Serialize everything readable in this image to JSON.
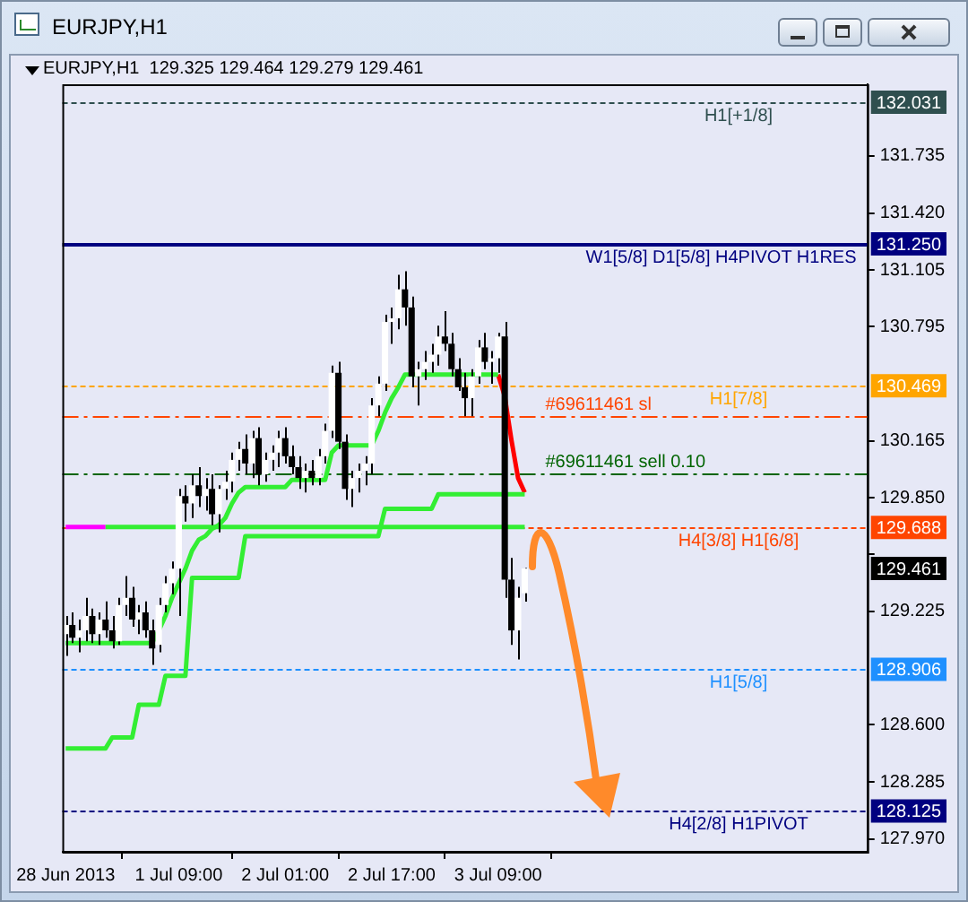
{
  "chart_data": {
    "type": "candlestick",
    "title": "EURJPY,H1",
    "subtitle": "129.325 129.464 129.279 129.461",
    "categories": [
      "28 Jun 2013",
      null,
      null,
      null,
      null,
      null,
      null,
      null,
      null,
      null,
      null,
      null,
      null,
      null,
      null,
      null,
      null,
      "1 Jul 09:00",
      null,
      null,
      null,
      null,
      null,
      null,
      null,
      null,
      null,
      null,
      null,
      null,
      null,
      null,
      null,
      "2 Jul 01:00",
      null,
      null,
      null,
      null,
      null,
      null,
      null,
      null,
      null,
      null,
      null,
      null,
      null,
      null,
      null,
      "2 Jul 17:00",
      null,
      null,
      null,
      null,
      null,
      null,
      null,
      null,
      null,
      null,
      null,
      null,
      null,
      null,
      null,
      "3 Jul 09:00",
      null,
      null,
      null,
      null,
      null,
      null,
      null,
      null,
      null,
      null,
      null,
      null,
      null,
      null,
      null,
      null,
      null,
      null,
      null,
      null,
      null,
      null,
      null,
      null,
      null,
      null,
      null,
      null,
      null,
      null,
      null,
      null,
      null,
      null,
      null,
      null,
      null,
      null,
      null,
      null,
      null,
      null,
      null,
      null,
      null,
      null,
      null,
      null,
      null,
      null,
      null,
      null,
      null,
      null,
      null
    ],
    "ohlc": [
      [
        129.1,
        129.2,
        128.98,
        129.15
      ],
      [
        129.15,
        129.22,
        129.05,
        129.08
      ],
      [
        129.08,
        129.18,
        129.0,
        129.12
      ],
      [
        129.12,
        129.3,
        129.06,
        129.2
      ],
      [
        129.2,
        129.24,
        129.05,
        129.1
      ],
      [
        129.1,
        129.22,
        129.04,
        129.18
      ],
      [
        129.18,
        129.28,
        129.08,
        129.12
      ],
      [
        129.12,
        129.2,
        129.02,
        129.06
      ],
      [
        129.06,
        129.3,
        129.04,
        129.26
      ],
      [
        129.26,
        129.42,
        129.2,
        129.3
      ],
      [
        129.3,
        129.36,
        129.14,
        129.18
      ],
      [
        129.18,
        129.26,
        129.1,
        129.22
      ],
      [
        129.22,
        129.28,
        129.08,
        129.12
      ],
      [
        129.12,
        129.18,
        128.93,
        129.02
      ],
      [
        129.04,
        129.3,
        129.0,
        129.26
      ],
      [
        129.26,
        129.42,
        129.22,
        129.38
      ],
      [
        129.38,
        129.5,
        129.32,
        129.46
      ],
      [
        129.46,
        129.9,
        129.2,
        129.86
      ],
      [
        129.86,
        129.92,
        129.72,
        129.82
      ],
      [
        129.82,
        129.98,
        129.74,
        129.92
      ],
      [
        129.92,
        130.02,
        129.8,
        129.86
      ],
      [
        129.86,
        129.96,
        129.78,
        129.9
      ],
      [
        129.9,
        129.98,
        129.7,
        129.76
      ],
      [
        129.76,
        129.92,
        129.66,
        129.9
      ],
      [
        129.9,
        130.0,
        129.84,
        129.94
      ],
      [
        129.94,
        130.1,
        129.88,
        130.06
      ],
      [
        130.06,
        130.16,
        130.0,
        130.12
      ],
      [
        130.12,
        130.2,
        129.98,
        130.04
      ],
      [
        130.04,
        130.22,
        129.96,
        130.18
      ],
      [
        130.18,
        130.24,
        129.92,
        129.98
      ],
      [
        129.98,
        130.1,
        129.94,
        130.06
      ],
      [
        130.06,
        130.14,
        130.0,
        130.1
      ],
      [
        130.1,
        130.22,
        130.02,
        130.18
      ],
      [
        130.18,
        130.24,
        130.04,
        130.08
      ],
      [
        130.08,
        130.14,
        129.98,
        130.02
      ],
      [
        130.02,
        130.08,
        129.9,
        129.96
      ],
      [
        129.96,
        130.04,
        129.88,
        130.0
      ],
      [
        130.0,
        130.06,
        129.92,
        129.96
      ],
      [
        129.96,
        130.12,
        129.92,
        130.08
      ],
      [
        130.08,
        130.26,
        130.04,
        130.22
      ],
      [
        130.22,
        130.58,
        130.18,
        130.54
      ],
      [
        130.54,
        130.6,
        130.12,
        130.16
      ],
      [
        130.16,
        130.2,
        129.84,
        129.9
      ],
      [
        129.9,
        130.0,
        129.8,
        129.96
      ],
      [
        129.96,
        130.04,
        129.88,
        130.0
      ],
      [
        130.0,
        130.08,
        129.92,
        130.04
      ],
      [
        130.04,
        130.4,
        129.98,
        130.36
      ],
      [
        130.36,
        130.52,
        130.3,
        130.48
      ],
      [
        130.48,
        130.86,
        130.44,
        130.82
      ],
      [
        130.82,
        130.9,
        130.7,
        130.84
      ],
      [
        130.84,
        131.08,
        130.78,
        131.0
      ],
      [
        131.0,
        131.1,
        130.8,
        130.9
      ],
      [
        130.9,
        130.96,
        130.46,
        130.52
      ],
      [
        130.52,
        130.6,
        130.36,
        130.56
      ],
      [
        130.56,
        130.66,
        130.5,
        130.6
      ],
      [
        130.6,
        130.7,
        130.54,
        130.64
      ],
      [
        130.64,
        130.8,
        130.58,
        130.74
      ],
      [
        130.74,
        130.88,
        130.66,
        130.7
      ],
      [
        130.7,
        130.76,
        130.52,
        130.56
      ],
      [
        130.56,
        130.62,
        130.44,
        130.46
      ],
      [
        130.46,
        130.54,
        130.3,
        130.4
      ],
      [
        130.4,
        130.56,
        130.3,
        130.52
      ],
      [
        130.52,
        130.72,
        130.48,
        130.68
      ],
      [
        130.68,
        130.76,
        130.56,
        130.6
      ],
      [
        130.6,
        130.66,
        130.48,
        130.62
      ],
      [
        130.62,
        130.76,
        130.54,
        130.74
      ],
      [
        130.74,
        130.82,
        129.3,
        129.4
      ],
      [
        129.4,
        129.52,
        129.04,
        129.12
      ],
      [
        129.12,
        129.36,
        128.96,
        129.3
      ],
      [
        129.325,
        129.464,
        129.279,
        129.461
      ],
      null,
      null,
      null,
      null,
      null,
      null,
      null,
      null,
      null,
      null,
      null,
      null,
      null,
      null,
      null,
      null,
      null,
      null,
      null,
      null,
      null,
      null,
      null,
      null,
      null,
      null,
      null,
      null,
      null,
      null,
      null,
      null,
      null,
      null,
      null,
      null,
      null,
      null,
      null,
      null,
      null,
      null,
      null,
      null,
      null,
      null,
      null,
      null,
      null,
      null,
      null
    ],
    "series": [
      {
        "type": "line",
        "color": "#33ee33",
        "values": [
          128.47,
          128.47,
          128.47,
          128.47,
          128.47,
          128.47,
          128.47,
          128.53,
          128.53,
          128.53,
          128.53,
          128.71,
          128.71,
          128.71,
          128.71,
          128.87,
          128.87,
          128.87,
          128.87,
          129.41,
          129.41,
          129.41,
          129.41,
          129.41,
          129.41,
          129.41,
          129.41,
          129.64,
          129.64,
          129.64,
          129.64,
          129.64,
          129.64,
          129.64,
          129.64,
          129.64,
          129.64,
          129.64,
          129.64,
          129.64,
          129.64,
          129.64,
          129.64,
          129.64,
          129.64,
          129.64,
          129.64,
          129.64,
          129.79,
          129.79,
          129.79,
          129.79,
          129.79,
          129.79,
          129.79,
          129.79,
          129.87,
          129.87,
          129.87,
          129.87,
          129.87,
          129.87,
          129.87,
          129.87,
          129.87,
          129.87,
          129.87,
          129.87,
          129.87,
          129.87,
          null,
          null,
          null,
          null,
          null,
          null,
          null,
          null,
          null,
          null,
          null,
          null,
          null,
          null,
          null,
          null,
          null,
          null,
          null,
          null,
          null,
          null,
          null,
          null,
          null,
          null,
          null,
          null,
          null,
          null,
          null,
          null,
          null,
          null,
          null,
          null,
          null,
          null,
          null,
          null,
          null,
          null,
          null,
          null,
          null,
          null,
          null,
          null,
          null,
          null,
          null
        ]
      },
      {
        "type": "line",
        "color": "#33ee33",
        "values": [
          129.05,
          129.05,
          129.05,
          129.05,
          129.05,
          129.05,
          129.05,
          129.05,
          129.05,
          129.05,
          129.05,
          129.05,
          129.05,
          129.05,
          129.12,
          129.2,
          129.3,
          129.38,
          129.46,
          129.56,
          129.62,
          129.64,
          129.68,
          129.7,
          129.74,
          129.82,
          129.88,
          129.91,
          129.91,
          129.91,
          129.91,
          129.91,
          129.91,
          129.91,
          129.95,
          129.95,
          129.95,
          129.95,
          129.95,
          129.95,
          130.1,
          130.14,
          130.14,
          130.14,
          130.14,
          130.14,
          130.14,
          130.22,
          130.32,
          130.4,
          130.46,
          130.53,
          130.53,
          130.53,
          130.53,
          130.53,
          130.53,
          130.53,
          130.53,
          130.53,
          130.53,
          130.53,
          130.53,
          130.53,
          130.53,
          130.53,
          null,
          null,
          null,
          null,
          null,
          null,
          null,
          null,
          null,
          null,
          null,
          null,
          null,
          null,
          null,
          null,
          null,
          null,
          null,
          null,
          null,
          null,
          null,
          null,
          null,
          null,
          null,
          null,
          null,
          null,
          null,
          null,
          null,
          null,
          null,
          null,
          null,
          null,
          null,
          null,
          null,
          null,
          null,
          null,
          null,
          null,
          null,
          null,
          null,
          null,
          null,
          null,
          null,
          null,
          null
        ]
      },
      {
        "type": "line",
        "color": "#33ee33",
        "values": [
          null,
          null,
          null,
          null,
          null,
          null,
          129.69,
          129.69,
          129.69,
          129.69,
          129.69,
          129.69,
          129.69,
          129.69,
          129.69,
          129.69,
          129.69,
          129.69,
          129.69,
          129.69,
          129.69,
          129.69,
          129.69,
          129.69,
          129.69,
          129.69,
          129.69,
          129.69,
          129.69,
          129.69,
          129.69,
          129.69,
          129.69,
          129.69,
          129.69,
          129.69,
          129.69,
          129.69,
          129.69,
          129.69,
          129.69,
          129.69,
          129.69,
          129.69,
          129.69,
          129.69,
          129.69,
          129.69,
          129.69,
          129.69,
          129.69,
          129.69,
          129.69,
          129.69,
          129.69,
          129.69,
          129.69,
          129.69,
          129.69,
          129.69,
          129.69,
          129.69,
          129.69,
          129.69,
          129.69,
          129.69,
          129.69,
          129.69,
          129.69,
          129.69,
          null,
          null,
          null,
          null,
          null,
          null,
          null,
          null,
          null,
          null,
          null,
          null,
          null,
          null,
          null,
          null,
          null,
          null,
          null,
          null,
          null,
          null,
          null,
          null,
          null,
          null,
          null,
          null,
          null,
          null,
          null,
          null,
          null,
          null,
          null,
          null,
          null,
          null,
          null,
          null,
          null,
          null,
          null,
          null,
          null,
          null,
          null,
          null,
          null,
          null,
          null
        ]
      },
      {
        "type": "line",
        "color": "#ff00ff",
        "values": [
          129.69,
          129.69,
          129.69,
          129.69,
          129.69,
          129.69,
          129.69,
          null,
          null,
          null,
          null,
          null,
          null,
          null,
          null,
          null,
          null,
          null,
          null,
          null,
          null,
          null,
          null,
          null,
          null,
          null,
          null,
          null,
          null,
          null,
          null,
          null,
          null,
          null,
          null,
          null,
          null,
          null,
          null,
          null,
          null,
          null,
          null,
          null,
          null,
          null,
          null,
          null,
          null,
          null,
          null,
          null,
          null,
          null,
          null,
          null,
          null,
          null,
          null,
          null,
          null,
          null,
          null,
          null,
          null,
          null,
          null,
          null,
          null,
          null,
          null,
          null,
          null,
          null,
          null,
          null,
          null,
          null,
          null,
          null,
          null,
          null,
          null,
          null,
          null,
          null,
          null,
          null,
          null,
          null,
          null,
          null,
          null,
          null,
          null,
          null,
          null,
          null,
          null,
          null,
          null,
          null,
          null,
          null,
          null,
          null,
          null,
          null,
          null,
          null,
          null,
          null,
          null,
          null,
          null,
          null,
          null,
          null,
          null,
          null,
          null
        ]
      },
      {
        "type": "line",
        "color": "#ff0000",
        "values": [
          null,
          null,
          null,
          null,
          null,
          null,
          null,
          null,
          null,
          null,
          null,
          null,
          null,
          null,
          null,
          null,
          null,
          null,
          null,
          null,
          null,
          null,
          null,
          null,
          null,
          null,
          null,
          null,
          null,
          null,
          null,
          null,
          null,
          null,
          null,
          null,
          null,
          null,
          null,
          null,
          null,
          null,
          null,
          null,
          null,
          null,
          null,
          null,
          null,
          null,
          null,
          null,
          null,
          null,
          null,
          null,
          null,
          null,
          null,
          null,
          null,
          null,
          null,
          null,
          null,
          130.53,
          130.41,
          130.17,
          129.96,
          129.88,
          null,
          null,
          null,
          null,
          null,
          null,
          null,
          null,
          null,
          null,
          null,
          null,
          null,
          null,
          null,
          null,
          null,
          null,
          null,
          null,
          null,
          null,
          null,
          null,
          null,
          null,
          null,
          null,
          null,
          null,
          null,
          null,
          null,
          null,
          null,
          null,
          null,
          null,
          null,
          null,
          null,
          null,
          null,
          null,
          null,
          null,
          null,
          null,
          null,
          null,
          null
        ]
      }
    ],
    "ylim": [
      127.9,
      132.13
    ],
    "yticks": [
      {
        "value": 127.97,
        "label": "127.970"
      },
      128.285,
      {
        "value": 128.6,
        "label": "128.600"
      },
      129.225,
      {
        "value": 129.54,
        "label": null
      },
      {
        "value": 129.85,
        "label": "129.850"
      },
      130.165,
      130.795,
      131.105,
      {
        "value": 131.42,
        "label": "131.420"
      },
      131.735
    ],
    "ref_lines": [
      {
        "axis": "y",
        "value": 132.031,
        "label": "H1[+1/8]",
        "color": "#2f4f4f",
        "line_style": "dotted"
      },
      {
        "axis": "y",
        "value": 131.25,
        "label": "W1[5/8] D1[5/8] H4PIVOT H1RES",
        "color": "#000080",
        "line_style": "solid"
      },
      {
        "axis": "y",
        "value": 130.469,
        "label": "H1[7/8]",
        "color": "#ffa500",
        "line_style": "dotted"
      },
      {
        "axis": "y",
        "value": 130.3,
        "label": "#69611461 sl",
        "color": "#ff4500",
        "line_style": "dashed"
      },
      {
        "axis": "y",
        "value": 129.99,
        "label": "#69611461 sell 0.10",
        "color": "#006400",
        "line_style": "dashed"
      },
      {
        "axis": "y",
        "value": 129.688,
        "label": "H4[3/8] H1[6/8]",
        "color": "#ff4500",
        "line_style": "dotted"
      },
      {
        "axis": "y",
        "value": 128.906,
        "label": "H1[5/8]",
        "color": "#1e90ff",
        "line_style": "dotted"
      },
      {
        "axis": "y",
        "value": 128.125,
        "label": "H4[2/8] H1PIVOT",
        "color": "#000080",
        "line_style": "dotted"
      }
    ],
    "annotations": [
      "132.031",
      "131.250",
      "130.469",
      "129.688",
      "128.906",
      "128.125",
      "129.461"
    ]
  }
}
